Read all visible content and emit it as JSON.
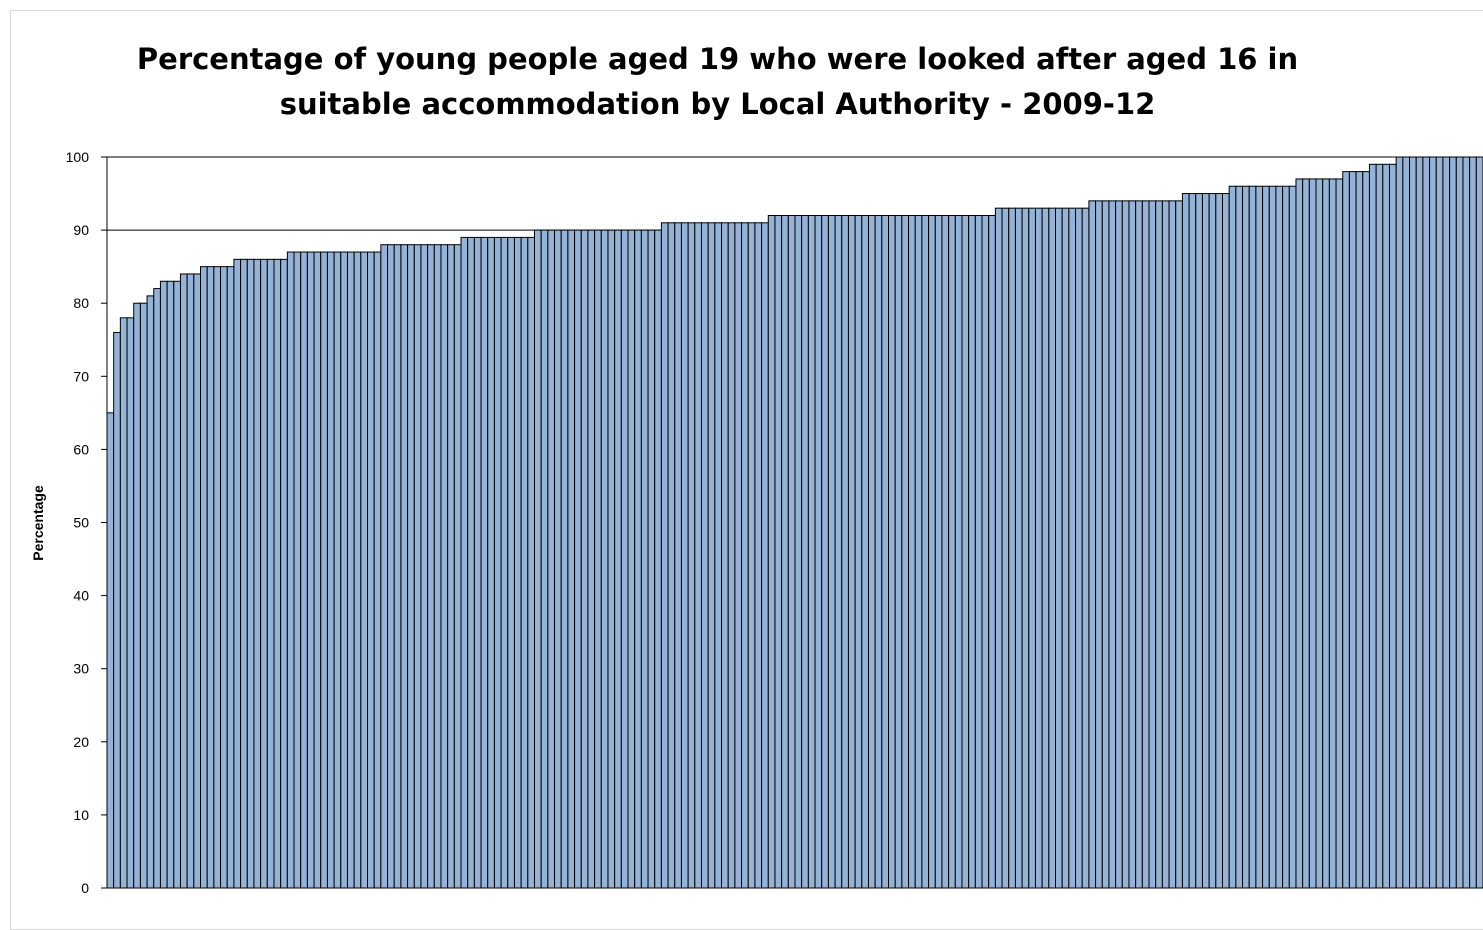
{
  "chart_data": {
    "type": "bar",
    "title_lines": [
      "Percentage of young people aged 19 who were looked after aged 16 in",
      "suitable accommodation by Local Authority - 2009-12"
    ],
    "xlabel": "",
    "ylabel": "Percentage",
    "ylim": [
      0,
      100
    ],
    "yticks": [
      "0",
      "10",
      "20",
      "30",
      "40",
      "50",
      "60",
      "70",
      "80",
      "90",
      "100"
    ],
    "grid": "horizontal at 90 and 100",
    "bar_color": "#95b3d7",
    "edge_color": "#000000",
    "values": [
      65,
      76,
      78,
      78,
      80,
      80,
      81,
      82,
      83,
      83,
      83,
      84,
      84,
      84,
      85,
      85,
      85,
      85,
      85,
      86,
      86,
      86,
      86,
      86,
      86,
      86,
      86,
      87,
      87,
      87,
      87,
      87,
      87,
      87,
      87,
      87,
      87,
      87,
      87,
      87,
      87,
      88,
      88,
      88,
      88,
      88,
      88,
      88,
      88,
      88,
      88,
      88,
      88,
      89,
      89,
      89,
      89,
      89,
      89,
      89,
      89,
      89,
      89,
      89,
      90,
      90,
      90,
      90,
      90,
      90,
      90,
      90,
      90,
      90,
      90,
      90,
      90,
      90,
      90,
      90,
      90,
      90,
      90,
      91,
      91,
      91,
      91,
      91,
      91,
      91,
      91,
      91,
      91,
      91,
      91,
      91,
      91,
      91,
      91,
      92,
      92,
      92,
      92,
      92,
      92,
      92,
      92,
      92,
      92,
      92,
      92,
      92,
      92,
      92,
      92,
      92,
      92,
      92,
      92,
      92,
      92,
      92,
      92,
      92,
      92,
      92,
      92,
      92,
      92,
      92,
      92,
      92,
      92,
      93,
      93,
      93,
      93,
      93,
      93,
      93,
      93,
      93,
      93,
      93,
      93,
      93,
      93,
      94,
      94,
      94,
      94,
      94,
      94,
      94,
      94,
      94,
      94,
      94,
      94,
      94,
      94,
      95,
      95,
      95,
      95,
      95,
      95,
      95,
      96,
      96,
      96,
      96,
      96,
      96,
      96,
      96,
      96,
      96,
      97,
      97,
      97,
      97,
      97,
      97,
      97,
      98,
      98,
      98,
      98,
      99,
      99,
      99,
      99,
      100,
      100,
      100,
      100,
      100,
      100,
      100,
      100,
      100,
      100,
      100,
      100,
      100
    ]
  }
}
